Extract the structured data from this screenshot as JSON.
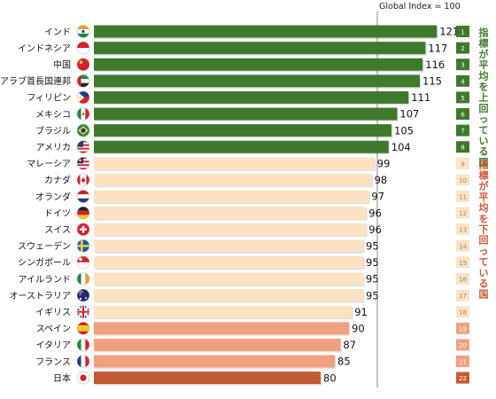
{
  "chart_data": {
    "type": "bar",
    "orientation": "horizontal",
    "reference_line": {
      "label": "Global Index = 100",
      "value": 100
    },
    "categories": [
      "インド",
      "インドネシア",
      "中国",
      "アラブ首長国連邦",
      "フィリピン",
      "メキシコ",
      "ブラジル",
      "アメリカ",
      "マレーシア",
      "カナダ",
      "オランダ",
      "ドイツ",
      "スイス",
      "スウェーデン",
      "シンガポール",
      "アイルランド",
      "オーストラリア",
      "イギリス",
      "スペイン",
      "イタリア",
      "フランス",
      "日本"
    ],
    "values": [
      121,
      117,
      116,
      115,
      111,
      107,
      105,
      104,
      99,
      98,
      97,
      96,
      96,
      95,
      95,
      95,
      95,
      91,
      90,
      87,
      85,
      80
    ],
    "ranks": [
      "1",
      "2",
      "3",
      "4",
      "5",
      "6",
      "7",
      "8",
      "9",
      "10",
      "11",
      "12",
      "13",
      "14",
      "15",
      "16",
      "17",
      "18",
      "19",
      "20",
      "21",
      "22"
    ],
    "flags": [
      "india-flag",
      "indonesia-flag",
      "china-flag",
      "uae-flag",
      "philippines-flag",
      "mexico-flag",
      "brazil-flag",
      "usa-flag",
      "malaysia-flag",
      "canada-flag",
      "netherlands-flag",
      "germany-flag",
      "switzerland-flag",
      "sweden-flag",
      "singapore-flag",
      "ireland-flag",
      "australia-flag",
      "uk-flag",
      "spain-flag",
      "italy-flag",
      "france-flag",
      "japan-flag"
    ],
    "bar_colors": [
      "#3f7a2c",
      "#3f7a2c",
      "#3f7a2c",
      "#3f7a2c",
      "#3f7a2c",
      "#3f7a2c",
      "#3f7a2c",
      "#3f7a2c",
      "#fbe3c4",
      "#fbe3c4",
      "#fbe3c4",
      "#fbe3c4",
      "#fbe3c4",
      "#fbe3c4",
      "#fbe3c4",
      "#fbe3c4",
      "#fbe3c4",
      "#fbe3c4",
      "#f0a07e",
      "#f0a07e",
      "#f0a07e",
      "#c65a33"
    ],
    "rank_box_colors": [
      "#3f7a2c",
      "#3f7a2c",
      "#3f7a2c",
      "#3f7a2c",
      "#3f7a2c",
      "#3f7a2c",
      "#3f7a2c",
      "#3f7a2c",
      "#fbe3c4",
      "#fbe3c4",
      "#fbe3c4",
      "#fbe3c4",
      "#fbe3c4",
      "#fbe3c4",
      "#fbe3c4",
      "#fbe3c4",
      "#fbe3c4",
      "#fbe3c4",
      "#f0a07e",
      "#f0a07e",
      "#f0a07e",
      "#c65a33"
    ],
    "xlim": [
      0,
      125
    ],
    "annotations": [
      {
        "text": "指標が平均を上回っている国",
        "color": "#3f7a2c",
        "rows": [
          1,
          8
        ]
      },
      {
        "text": "指標が平均を下回っている国",
        "color": "#c65a33",
        "rows": [
          9,
          22
        ]
      }
    ]
  }
}
